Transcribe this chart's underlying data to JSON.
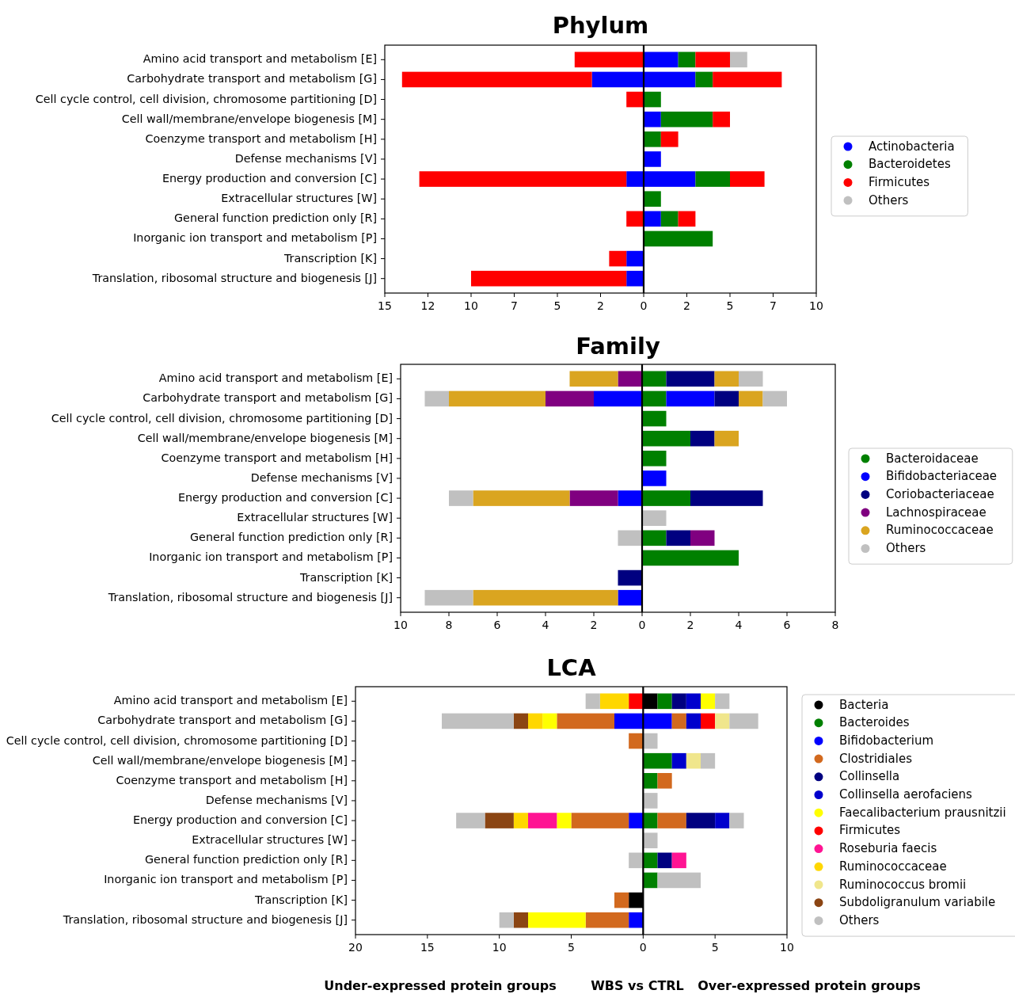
{
  "chart_data": [
    {
      "type": "bar",
      "title": "Phylum",
      "stacked": true,
      "orientation": "horizontal",
      "legend": "right",
      "categories": [
        "Amino acid transport and metabolism [E]",
        "Carbohydrate transport and metabolism [G]",
        "Cell cycle control, cell division, chromosome partitioning [D]",
        "Cell wall/membrane/envelope biogenesis [M]",
        "Coenzyme transport and metabolism [H]",
        "Defense mechanisms [V]",
        "Energy production and conversion [C]",
        "Extracellular structures [W]",
        "General function prediction only [R]",
        "Inorganic ion transport and metabolism [P]",
        "Transcription [K]",
        "Translation, ribosomal structure and biogenesis [J]"
      ],
      "xlim": [
        -15,
        10
      ],
      "xticks": [
        {
          "value": -15,
          "label": "15"
        },
        {
          "value": -12.5,
          "label": "12"
        },
        {
          "value": -10,
          "label": "10"
        },
        {
          "value": -7.5,
          "label": "7"
        },
        {
          "value": -5,
          "label": "5"
        },
        {
          "value": -2.5,
          "label": "2"
        },
        0,
        {
          "value": 2.5,
          "label": "2"
        },
        {
          "value": 5,
          "label": "5"
        },
        {
          "value": 7.5,
          "label": "7"
        },
        {
          "value": 10,
          "label": "10"
        }
      ],
      "series": [
        {
          "name": "Actinobacteria",
          "color": "#0000ff",
          "values": [
            2,
            3,
            null,
            1,
            null,
            1,
            3,
            null,
            1,
            null,
            null,
            null
          ]
        },
        {
          "color": "#0000ff",
          "values": [
            null,
            -3,
            null,
            null,
            null,
            null,
            -1,
            null,
            null,
            null,
            -1,
            -1
          ]
        },
        {
          "name": "Bacteroidetes",
          "color": "#008000",
          "values": [
            1,
            1,
            1,
            3,
            1,
            null,
            2,
            1,
            1,
            4,
            null,
            null
          ]
        },
        {
          "name": "Firmicutes",
          "color": "#ff0000",
          "values": [
            2,
            4,
            null,
            1,
            1,
            null,
            2,
            null,
            1,
            null,
            null,
            null
          ]
        },
        {
          "color": "#ff0000",
          "values": [
            -4,
            -11,
            -1,
            null,
            null,
            null,
            -12,
            null,
            -1,
            null,
            -1,
            -9
          ]
        },
        {
          "name": "Others",
          "color": "#c0c0c0",
          "values": [
            1,
            null,
            null,
            null,
            null,
            null,
            null,
            null,
            null,
            null,
            null,
            null
          ]
        }
      ]
    },
    {
      "type": "bar",
      "title": "Family",
      "stacked": true,
      "orientation": "horizontal",
      "legend": "right",
      "categories": [
        "Amino acid transport and metabolism [E]",
        "Carbohydrate transport and metabolism [G]",
        "Cell cycle control, cell division, chromosome partitioning [D]",
        "Cell wall/membrane/envelope biogenesis [M]",
        "Coenzyme transport and metabolism [H]",
        "Defense mechanisms [V]",
        "Energy production and conversion [C]",
        "Extracellular structures [W]",
        "General function prediction only [R]",
        "Inorganic ion transport and metabolism [P]",
        "Transcription [K]",
        "Translation, ribosomal structure and biogenesis [J]"
      ],
      "xlim": [
        -10,
        8
      ],
      "xticks": [
        {
          "value": -10,
          "label": "10"
        },
        {
          "value": -8,
          "label": "8"
        },
        {
          "value": -6,
          "label": "6"
        },
        {
          "value": -4,
          "label": "4"
        },
        {
          "value": -2,
          "label": "2"
        },
        0,
        2,
        4,
        6,
        8
      ],
      "series": [
        {
          "name": "Bacteroidaceae",
          "color": "#008000",
          "values": [
            1,
            1,
            1,
            2,
            1,
            null,
            2,
            null,
            1,
            4,
            null,
            null
          ]
        },
        {
          "name": "Bifidobacteriaceae",
          "color": "#0000ff",
          "values": [
            null,
            2,
            null,
            null,
            null,
            1,
            null,
            null,
            null,
            null,
            null,
            null
          ]
        },
        {
          "color": "#0000ff",
          "values": [
            null,
            -2,
            null,
            null,
            null,
            null,
            -1,
            null,
            null,
            null,
            null,
            -1
          ]
        },
        {
          "name": "Coriobacteriaceae",
          "color": "#000080",
          "values": [
            2,
            1,
            null,
            1,
            null,
            null,
            3,
            null,
            1,
            null,
            null,
            null
          ]
        },
        {
          "color": "#000080",
          "values": [
            null,
            null,
            null,
            null,
            null,
            null,
            null,
            null,
            null,
            null,
            -1,
            null
          ]
        },
        {
          "name": "Lachnospiraceae",
          "color": "#800080",
          "values": [
            null,
            null,
            null,
            null,
            null,
            null,
            null,
            null,
            1,
            null,
            null,
            null
          ]
        },
        {
          "color": "#800080",
          "values": [
            -1,
            -2,
            null,
            null,
            null,
            null,
            -2,
            null,
            null,
            null,
            null,
            null
          ]
        },
        {
          "name": "Ruminococcaceae",
          "color": "#daa520",
          "values": [
            1,
            1,
            null,
            1,
            null,
            null,
            null,
            null,
            null,
            null,
            null,
            null
          ]
        },
        {
          "color": "#daa520",
          "values": [
            -2,
            -4,
            null,
            null,
            null,
            null,
            -4,
            null,
            null,
            null,
            null,
            -6
          ]
        },
        {
          "name": "Others",
          "color": "#c0c0c0",
          "values": [
            1,
            1,
            null,
            null,
            null,
            null,
            null,
            1,
            null,
            null,
            null,
            null
          ]
        },
        {
          "color": "#c0c0c0",
          "values": [
            null,
            -1,
            null,
            null,
            null,
            null,
            -1,
            null,
            -1,
            null,
            null,
            -2
          ]
        }
      ]
    },
    {
      "type": "bar",
      "title": "LCA",
      "stacked": true,
      "orientation": "horizontal",
      "legend": "right",
      "categories": [
        "Amino acid transport and metabolism [E]",
        "Carbohydrate transport and metabolism [G]",
        "Cell cycle control, cell division, chromosome partitioning [D]",
        "Cell wall/membrane/envelope biogenesis [M]",
        "Coenzyme transport and metabolism [H]",
        "Defense mechanisms [V]",
        "Energy production and conversion [C]",
        "Extracellular structures [W]",
        "General function prediction only [R]",
        "Inorganic ion transport and metabolism [P]",
        "Transcription [K]",
        "Translation, ribosomal structure and biogenesis [J]"
      ],
      "xlim": [
        -20,
        10
      ],
      "xticks": [
        {
          "value": -20,
          "label": "20"
        },
        {
          "value": -15,
          "label": "15"
        },
        {
          "value": -10,
          "label": "10"
        },
        {
          "value": -5,
          "label": "5"
        },
        0,
        5,
        10
      ],
      "annotations": [
        "Under-expressed protein groups",
        "WBS vs CTRL",
        "Over-expressed protein groups"
      ],
      "series": [
        {
          "name": "Bacteria",
          "color": "#000000",
          "values": [
            1,
            null,
            null,
            null,
            null,
            null,
            null,
            null,
            null,
            null,
            null,
            null
          ]
        },
        {
          "color": "#000000",
          "values": [
            null,
            null,
            null,
            null,
            null,
            null,
            null,
            null,
            null,
            null,
            -1,
            null
          ]
        },
        {
          "name": "Bacteroides",
          "color": "#008000",
          "values": [
            1,
            null,
            null,
            2,
            1,
            null,
            1,
            null,
            1,
            1,
            null,
            null
          ]
        },
        {
          "name": "Bifidobacterium",
          "color": "#0000ff",
          "values": [
            null,
            2,
            null,
            null,
            null,
            null,
            null,
            null,
            null,
            null,
            null,
            null
          ]
        },
        {
          "color": "#0000ff",
          "values": [
            null,
            -2,
            null,
            null,
            null,
            null,
            -1,
            null,
            null,
            null,
            null,
            -1
          ]
        },
        {
          "name": "Clostridiales",
          "color": "#d2691e",
          "values": [
            null,
            1,
            null,
            null,
            1,
            null,
            2,
            null,
            null,
            null,
            null,
            null
          ]
        },
        {
          "color": "#d2691e",
          "values": [
            null,
            -4,
            -1,
            null,
            null,
            null,
            -4,
            null,
            null,
            null,
            -1,
            -3
          ]
        },
        {
          "name": "Collinsella",
          "color": "#000080",
          "values": [
            1,
            null,
            null,
            null,
            null,
            null,
            2,
            null,
            1,
            null,
            null,
            null
          ]
        },
        {
          "name": "Collinsella aerofaciens",
          "color": "#0000cd",
          "values": [
            1,
            1,
            null,
            1,
            null,
            null,
            1,
            null,
            null,
            null,
            null,
            null
          ]
        },
        {
          "name": "Faecalibacterium prausnitzii",
          "color": "#ffff00",
          "values": [
            1,
            null,
            null,
            null,
            null,
            null,
            null,
            null,
            null,
            null,
            null,
            null
          ]
        },
        {
          "color": "#ffff00",
          "values": [
            null,
            -1,
            null,
            null,
            null,
            null,
            -1,
            null,
            null,
            null,
            null,
            -4
          ]
        },
        {
          "name": "Firmicutes",
          "color": "#ff0000",
          "values": [
            null,
            1,
            null,
            null,
            null,
            null,
            null,
            null,
            null,
            null,
            null,
            null
          ]
        },
        {
          "color": "#ff0000",
          "values": [
            -1,
            null,
            null,
            null,
            null,
            null,
            null,
            null,
            null,
            null,
            null,
            null
          ]
        },
        {
          "name": "Roseburia faecis",
          "color": "#ff1493",
          "values": [
            null,
            null,
            null,
            null,
            null,
            null,
            null,
            null,
            1,
            null,
            null,
            null
          ]
        },
        {
          "color": "#ff1493",
          "values": [
            null,
            null,
            null,
            null,
            null,
            null,
            -2,
            null,
            null,
            null,
            null,
            null
          ]
        },
        {
          "name": "Ruminococcaceae",
          "color": "#ffd700",
          "values": [
            -2,
            -1,
            null,
            null,
            null,
            null,
            -1,
            null,
            null,
            null,
            null,
            null
          ]
        },
        {
          "name": "Ruminococcus bromii",
          "color": "#f0e68c",
          "values": [
            null,
            1,
            null,
            1,
            null,
            null,
            null,
            null,
            null,
            null,
            null,
            null
          ]
        },
        {
          "name": "Subdoligranulum variabile",
          "color": "#8b4513",
          "values": [
            null,
            -1,
            null,
            null,
            null,
            null,
            -2,
            null,
            null,
            null,
            null,
            -1
          ]
        },
        {
          "name": "Others",
          "color": "#c0c0c0",
          "values": [
            1,
            2,
            1,
            1,
            null,
            1,
            1,
            1,
            null,
            3,
            null,
            null
          ]
        },
        {
          "color": "#c0c0c0",
          "values": [
            -1,
            -5,
            null,
            null,
            null,
            null,
            -2,
            null,
            -1,
            null,
            null,
            -1
          ]
        }
      ]
    }
  ]
}
